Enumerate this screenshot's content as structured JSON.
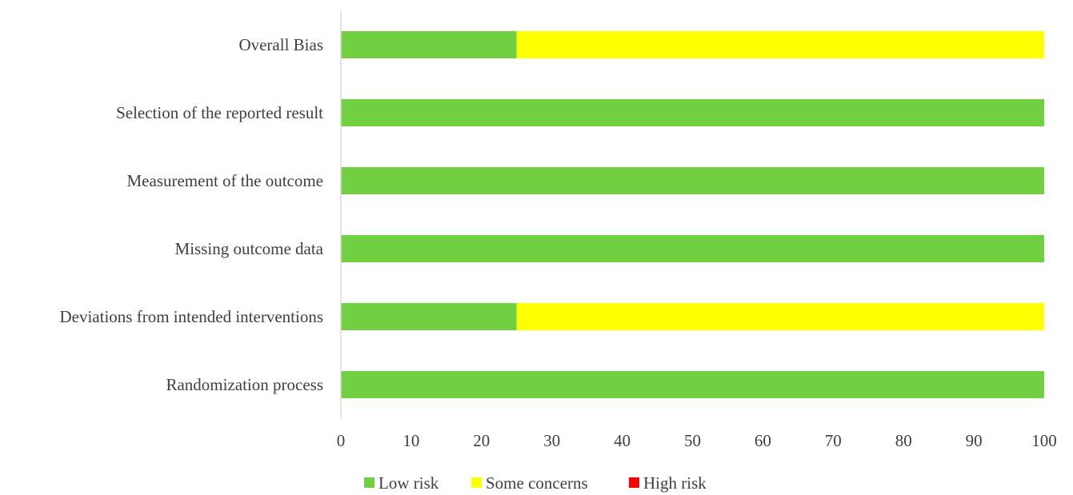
{
  "chart_data": {
    "type": "bar",
    "orientation": "horizontal",
    "stacked": true,
    "title": "",
    "xlabel": "",
    "ylabel": "",
    "categories": [
      "Randomization process",
      "Deviations from intended interventions",
      "Missing outcome data",
      "Measurement of the outcome",
      "Selection of the reported result",
      "Overall Bias"
    ],
    "series": [
      {
        "name": "Low risk",
        "color": "#70d040",
        "values": [
          100,
          25,
          100,
          100,
          100,
          25
        ]
      },
      {
        "name": "Some concerns",
        "color": "#ffff00",
        "values": [
          0,
          75,
          0,
          0,
          0,
          75
        ]
      },
      {
        "name": "High risk",
        "color": "#ff0000",
        "values": [
          0,
          0,
          0,
          0,
          0,
          0
        ]
      }
    ],
    "xlim": [
      0,
      100
    ],
    "xticks": [
      "0",
      "10",
      "20",
      "30",
      "40",
      "50",
      "60",
      "70",
      "80",
      "90",
      "100"
    ],
    "grid": false,
    "legend_position": "bottom"
  }
}
